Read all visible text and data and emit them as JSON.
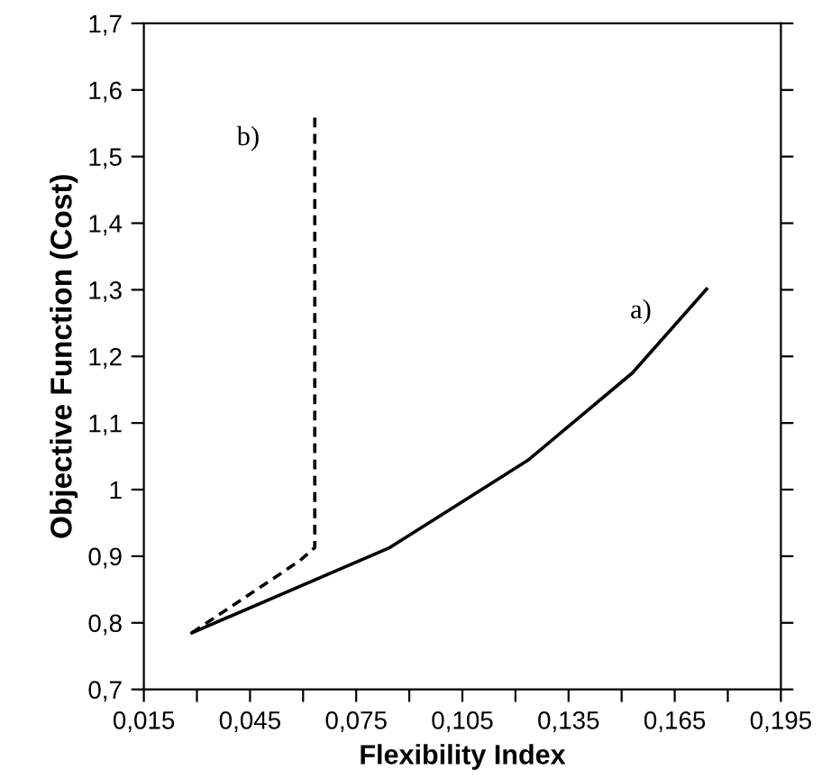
{
  "chart_data": {
    "type": "line",
    "xlabel": "Flexibility Index",
    "ylabel": "Objective Function (Cost)",
    "xlim": [
      0.015,
      0.195
    ],
    "ylim": [
      0.7,
      1.7
    ],
    "xticks": [
      {
        "value": 0.015,
        "label": "0,015"
      },
      {
        "value": 0.03,
        "label": null
      },
      {
        "value": 0.045,
        "label": "0,045"
      },
      {
        "value": 0.06,
        "label": null
      },
      {
        "value": 0.075,
        "label": "0,075"
      },
      {
        "value": 0.09,
        "label": null
      },
      {
        "value": 0.105,
        "label": "0,105"
      },
      {
        "value": 0.12,
        "label": null
      },
      {
        "value": 0.135,
        "label": "0,135"
      },
      {
        "value": 0.15,
        "label": null
      },
      {
        "value": 0.165,
        "label": "0,165"
      },
      {
        "value": 0.18,
        "label": null
      },
      {
        "value": 0.195,
        "label": "0,195"
      }
    ],
    "yticks": [
      {
        "value": 0.7,
        "label": "0,7"
      },
      {
        "value": 0.8,
        "label": "0,8"
      },
      {
        "value": 0.9,
        "label": "0,9"
      },
      1,
      {
        "value": 1.1,
        "label": "1,1"
      },
      {
        "value": 1.2,
        "label": "1,2"
      },
      {
        "value": 1.3,
        "label": "1,3"
      },
      {
        "value": 1.4,
        "label": "1,4"
      },
      {
        "value": 1.5,
        "label": "1,5"
      },
      {
        "value": 1.6,
        "label": "1,6"
      },
      {
        "value": 1.7,
        "label": "1,7"
      }
    ],
    "series": [
      {
        "color": "#000000",
        "line_style": "solid",
        "x": [
          0.0286,
          0.0845,
          0.1235,
          0.153,
          0.174
        ],
        "values": [
          0.785,
          0.913,
          1.044,
          1.175,
          1.301
        ]
      },
      {
        "color": "#000000",
        "line_style": "dashed",
        "x": [
          0.0286,
          0.059,
          0.0633,
          0.0633
        ],
        "values": [
          0.785,
          0.893,
          0.913,
          1.561
        ]
      }
    ],
    "annotations": [
      "a)",
      "b)"
    ],
    "grid": false,
    "legend": false
  }
}
